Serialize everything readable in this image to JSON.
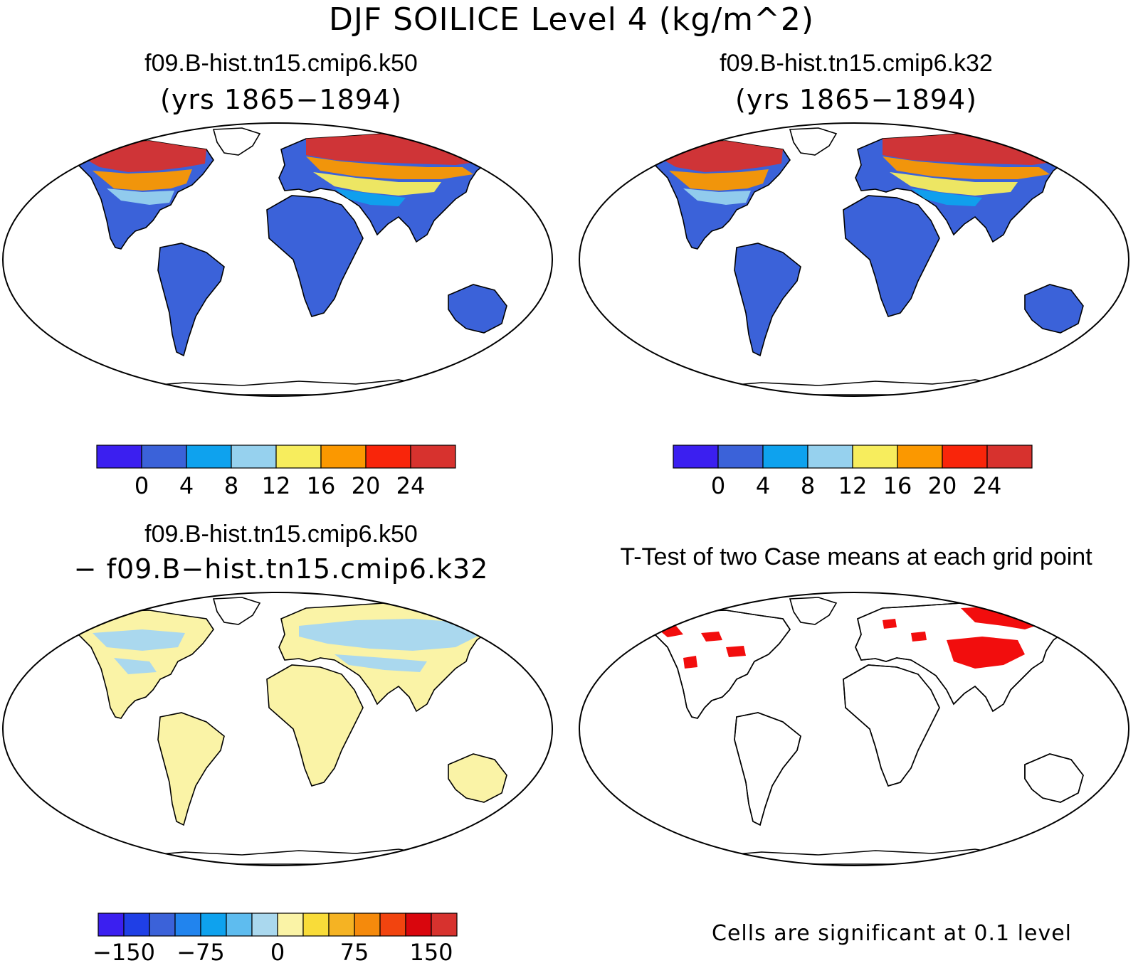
{
  "figure": {
    "title": "DJF SOILICE Level 4 (kg/m^2)"
  },
  "panels": [
    {
      "id": "k50",
      "title": "f09.B-hist.tn15.cmip6.k50",
      "subtitle": "(yrs 1865−1894)",
      "kind": "field"
    },
    {
      "id": "k32",
      "title": "f09.B-hist.tn15.cmip6.k32",
      "subtitle": "(yrs 1865−1894)",
      "kind": "field"
    },
    {
      "id": "diff",
      "title": "f09.B-hist.tn15.cmip6.k50",
      "subtitle": "− f09.B−hist.tn15.cmip6.k32",
      "kind": "difference"
    },
    {
      "id": "ttest",
      "title": "T-Test of two Case means at each grid point",
      "subtitle": "",
      "kind": "significance",
      "note": "Cells are significant at 0.1 level"
    }
  ],
  "colorbars": {
    "field": {
      "colors": [
        "#3b1ff0",
        "#3b62d9",
        "#0ea2ee",
        "#96d1ee",
        "#f7ed5d",
        "#fb9800",
        "#f9250a",
        "#d7322e"
      ],
      "tick_labels": [
        "0",
        "4",
        "8",
        "12",
        "16",
        "20",
        "24"
      ]
    },
    "diff": {
      "colors": [
        "#3b1ff0",
        "#1f3fe6",
        "#3b62d9",
        "#2184ee",
        "#0ea2ee",
        "#5ebcef",
        "#aad8ee",
        "#faf3a6",
        "#f9dc39",
        "#f5b323",
        "#f58a0c",
        "#f2440f",
        "#d9060d",
        "#d7322e"
      ],
      "tick_labels": [
        "−150",
        "−75",
        "0",
        "75",
        "150"
      ]
    }
  },
  "colors": {
    "land_low": "#3b62d9",
    "diff_land": "#faf3a6",
    "diff_neg": "#aad8ee",
    "significant": "#f20d0d",
    "coast": "#000000"
  }
}
